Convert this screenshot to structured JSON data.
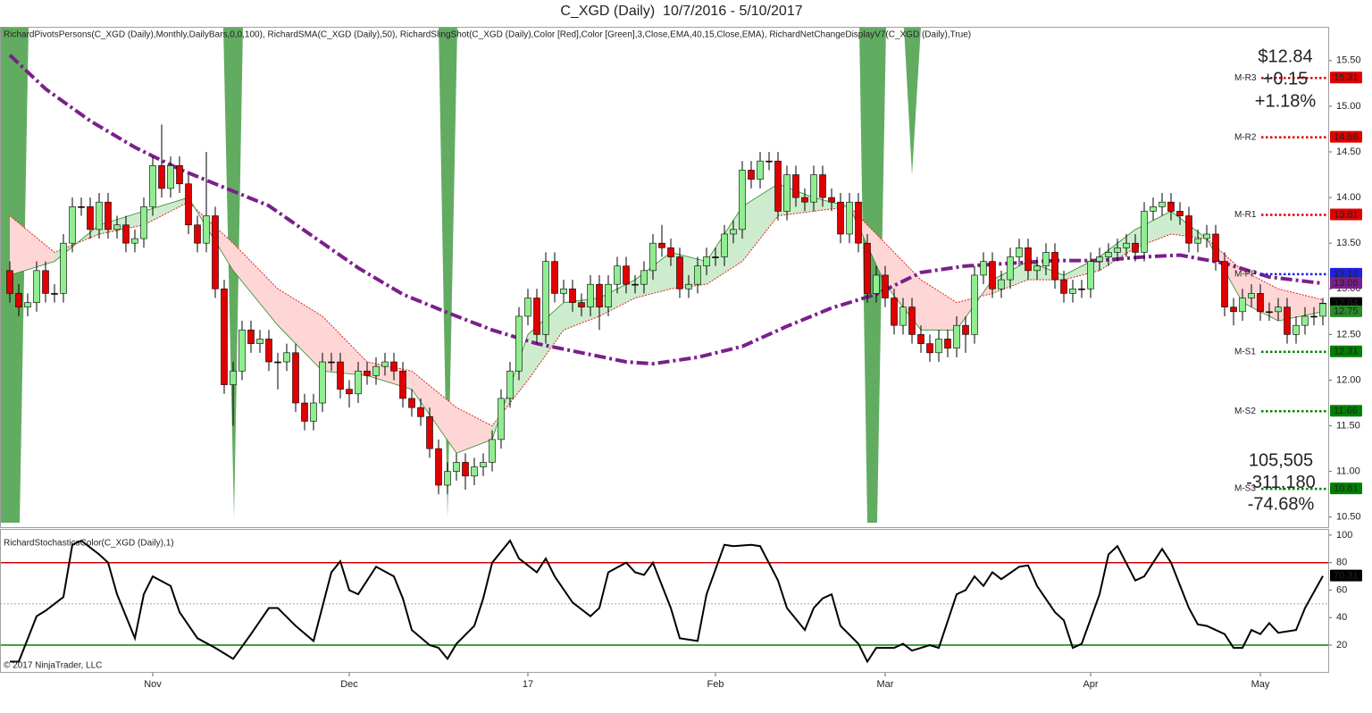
{
  "title": "C_XGD (Daily)  10/7/2016 - 5/10/2017",
  "copyright": "© 2017 NinjaTrader, LLC",
  "chart_data": [
    {
      "type": "candlestick",
      "label": "RichardPivotsPersons(C_XGD (Daily),Monthly,DailyBars,0,0,100), RichardSMA(C_XGD (Daily),50), RichardSlingShot(C_XGD (Daily),Color [Red],Color [Green],3,Close,EMA,40,15,Close,EMA), RichardNetChangeDisplayV7(C_XGD (Daily),True)",
      "xlim": [
        -1.1,
        147.6
      ],
      "ylim": [
        10.39,
        15.87
      ],
      "yticks": [
        {
          "value": 10.5,
          "label": "10.50"
        },
        {
          "value": 11,
          "label": "11.00"
        },
        {
          "value": 11.5,
          "label": "11.50"
        },
        {
          "value": 12,
          "label": "12.00"
        },
        {
          "value": 12.5,
          "label": "12.50"
        },
        {
          "value": 13,
          "label": "13.00"
        },
        {
          "value": 13.5,
          "label": "13.50"
        },
        {
          "value": 14,
          "label": "14.00"
        },
        {
          "value": 14.5,
          "label": "14.50"
        },
        {
          "value": 15,
          "label": "15.00"
        },
        {
          "value": 15.5,
          "label": "15.50"
        }
      ],
      "xticks": [
        {
          "value": 16,
          "label": "Nov"
        },
        {
          "value": 38,
          "label": "Dec"
        },
        {
          "value": 58,
          "label": "17"
        },
        {
          "value": 79,
          "label": "Feb"
        },
        {
          "value": 98,
          "label": "Mar"
        },
        {
          "value": 121,
          "label": "Apr"
        },
        {
          "value": 140,
          "label": "May"
        }
      ],
      "grid": false,
      "up_color": "#90ee90",
      "down_color": "#e00000",
      "open": [
        13.2,
        12.95,
        12.8,
        12.85,
        13.2,
        12.95,
        12.95,
        13.5,
        13.9,
        13.9,
        13.65,
        13.95,
        13.65,
        13.7,
        13.5,
        13.55,
        13.9,
        14.35,
        14.1,
        14.35,
        14.15,
        13.7,
        13.5,
        13.8,
        13.0,
        11.95,
        12.1,
        12.55,
        12.4,
        12.45,
        12.2,
        12.2,
        12.3,
        11.75,
        11.55,
        11.75,
        12.2,
        12.2,
        11.9,
        11.85,
        12.1,
        12.05,
        12.15,
        12.2,
        12.1,
        11.8,
        11.7,
        11.6,
        11.25,
        10.85,
        11.0,
        11.1,
        10.95,
        11.05,
        11.1,
        11.35,
        11.8,
        12.1,
        12.7,
        12.9,
        12.5,
        13.3,
        12.95,
        13.0,
        12.85,
        12.8,
        13.05,
        12.8,
        13.05,
        13.25,
        13.05,
        13.05,
        13.2,
        13.5,
        13.45,
        13.35,
        13.0,
        13.05,
        13.25,
        13.35,
        13.35,
        13.6,
        13.65,
        14.3,
        14.2,
        14.4,
        14.4,
        13.85,
        14.25,
        14.0,
        13.95,
        14.25,
        14.0,
        13.95,
        13.6,
        13.95,
        13.5,
        12.95,
        13.15,
        12.9,
        12.6,
        12.8,
        12.5,
        12.4,
        12.3,
        12.45,
        12.35,
        12.6,
        12.5,
        13.15,
        13.3,
        13.0,
        13.1,
        13.35,
        13.45,
        13.2,
        13.25,
        13.4,
        13.1,
        12.95,
        13.0,
        13.0,
        13.3,
        13.35,
        13.4,
        13.45,
        13.5,
        13.4,
        13.85,
        13.9,
        13.95,
        13.85,
        13.8,
        13.5,
        13.55,
        13.6,
        13.3,
        12.8,
        12.75,
        12.9,
        12.95,
        12.75,
        12.75,
        12.8,
        12.5,
        12.6,
        12.7,
        12.7
      ],
      "high": [
        13.3,
        13.05,
        12.95,
        13.3,
        13.3,
        13.05,
        13.6,
        14.0,
        14.0,
        14.0,
        14.05,
        14.05,
        13.8,
        13.8,
        13.65,
        14.0,
        14.45,
        14.8,
        14.45,
        14.45,
        14.25,
        13.8,
        14.5,
        13.9,
        13.1,
        12.2,
        12.65,
        12.65,
        12.55,
        12.55,
        12.3,
        12.4,
        12.4,
        11.85,
        11.85,
        12.3,
        12.3,
        12.3,
        12.0,
        12.2,
        12.2,
        12.25,
        12.3,
        12.3,
        12.2,
        11.9,
        11.8,
        11.7,
        11.35,
        11.1,
        11.2,
        11.2,
        11.15,
        11.2,
        11.45,
        11.9,
        12.2,
        12.8,
        13.0,
        13.0,
        13.4,
        13.4,
        13.1,
        13.1,
        12.95,
        13.15,
        13.15,
        13.15,
        13.35,
        13.35,
        13.15,
        13.3,
        13.6,
        13.7,
        13.55,
        13.45,
        13.15,
        13.35,
        13.45,
        13.45,
        13.7,
        13.75,
        14.4,
        14.4,
        14.5,
        14.5,
        14.5,
        14.35,
        14.35,
        14.1,
        14.35,
        14.35,
        14.1,
        14.05,
        14.05,
        14.05,
        13.6,
        13.25,
        13.25,
        13.0,
        12.9,
        12.9,
        12.6,
        12.5,
        12.55,
        12.55,
        12.7,
        12.7,
        13.25,
        13.4,
        13.4,
        13.2,
        13.45,
        13.55,
        13.55,
        13.35,
        13.5,
        13.5,
        13.2,
        13.1,
        13.1,
        13.4,
        13.45,
        13.5,
        13.55,
        13.6,
        13.6,
        13.95,
        14.0,
        14.05,
        14.05,
        13.95,
        13.9,
        13.65,
        13.7,
        13.7,
        13.4,
        12.9,
        13.0,
        13.05,
        13.05,
        12.85,
        12.9,
        12.9,
        12.7,
        12.8,
        12.8,
        12.9
      ],
      "low": [
        12.85,
        12.7,
        12.7,
        12.75,
        12.85,
        12.85,
        12.85,
        13.4,
        13.8,
        13.55,
        13.55,
        13.55,
        13.55,
        13.4,
        13.4,
        13.45,
        13.8,
        14.0,
        14.0,
        14.05,
        13.6,
        13.4,
        13.4,
        12.9,
        11.85,
        11.5,
        12.0,
        12.3,
        12.3,
        12.1,
        11.9,
        12.1,
        11.65,
        11.45,
        11.45,
        11.65,
        12.1,
        11.8,
        11.7,
        11.75,
        11.95,
        11.95,
        12.05,
        12.0,
        11.7,
        11.6,
        11.5,
        11.15,
        10.75,
        10.75,
        10.9,
        10.8,
        10.85,
        10.95,
        11.0,
        11.25,
        11.7,
        12.0,
        12.6,
        12.4,
        12.4,
        12.85,
        12.85,
        12.75,
        12.7,
        12.7,
        12.55,
        12.7,
        12.95,
        12.95,
        12.95,
        12.95,
        13.1,
        13.35,
        13.25,
        12.9,
        12.9,
        12.95,
        13.15,
        13.25,
        13.25,
        13.5,
        13.55,
        14.1,
        14.1,
        14.3,
        13.75,
        13.75,
        13.9,
        13.85,
        13.85,
        13.9,
        13.85,
        13.5,
        13.5,
        13.4,
        12.85,
        12.85,
        12.8,
        12.5,
        12.5,
        12.4,
        12.3,
        12.2,
        12.2,
        12.25,
        12.25,
        12.3,
        12.4,
        13.05,
        12.9,
        12.9,
        13.0,
        13.25,
        13.1,
        13.1,
        13.15,
        13.0,
        12.85,
        12.85,
        12.9,
        12.9,
        13.2,
        13.25,
        13.3,
        13.35,
        13.3,
        13.3,
        13.75,
        13.8,
        13.75,
        13.7,
        13.4,
        13.4,
        13.45,
        13.2,
        12.7,
        12.6,
        12.65,
        12.8,
        12.65,
        12.65,
        12.65,
        12.4,
        12.4,
        12.5,
        12.6,
        12.6
      ],
      "close": [
        12.95,
        12.8,
        12.85,
        13.2,
        12.95,
        12.95,
        13.5,
        13.9,
        13.9,
        13.65,
        13.95,
        13.65,
        13.7,
        13.5,
        13.55,
        13.9,
        14.35,
        14.1,
        14.35,
        14.15,
        13.7,
        13.5,
        13.8,
        13.0,
        11.95,
        12.1,
        12.55,
        12.4,
        12.45,
        12.2,
        12.2,
        12.3,
        11.75,
        11.55,
        11.75,
        12.2,
        12.2,
        11.9,
        11.85,
        12.1,
        12.05,
        12.15,
        12.2,
        12.1,
        11.8,
        11.7,
        11.6,
        11.25,
        10.85,
        11.0,
        11.1,
        10.95,
        11.05,
        11.1,
        11.35,
        11.8,
        12.1,
        12.7,
        12.9,
        12.5,
        13.3,
        12.95,
        13.0,
        12.85,
        12.8,
        13.05,
        12.8,
        13.05,
        13.25,
        13.05,
        13.05,
        13.2,
        13.5,
        13.45,
        13.35,
        13.0,
        13.05,
        13.25,
        13.35,
        13.35,
        13.6,
        13.65,
        14.3,
        14.2,
        14.4,
        14.4,
        13.85,
        14.25,
        14.0,
        13.95,
        14.25,
        14.0,
        13.95,
        13.6,
        13.95,
        13.5,
        12.95,
        13.15,
        12.9,
        12.6,
        12.8,
        12.5,
        12.4,
        12.3,
        12.45,
        12.35,
        12.6,
        12.5,
        13.15,
        13.3,
        13.0,
        13.1,
        13.35,
        13.45,
        13.2,
        13.25,
        13.4,
        13.1,
        12.95,
        13.0,
        13.0,
        13.3,
        13.35,
        13.4,
        13.45,
        13.5,
        13.4,
        13.85,
        13.9,
        13.95,
        13.85,
        13.8,
        13.5,
        13.55,
        13.6,
        13.3,
        12.8,
        12.75,
        12.9,
        12.95,
        12.75,
        12.75,
        12.8,
        12.5,
        12.6,
        12.7,
        12.7,
        12.84
      ],
      "last_color": "#000000",
      "sma": {
        "color": "#7b1f8c",
        "x": [
          0,
          4,
          9,
          14,
          19,
          24,
          29,
          34,
          39,
          44,
          49,
          54,
          59,
          64,
          69,
          72,
          77,
          82,
          87,
          92,
          97,
          102,
          107,
          112,
          117,
          122,
          127,
          131,
          136,
          141,
          147
        ],
        "values": [
          15.56,
          15.19,
          14.84,
          14.55,
          14.31,
          14.11,
          13.91,
          13.57,
          13.23,
          12.94,
          12.74,
          12.55,
          12.4,
          12.3,
          12.2,
          12.18,
          12.25,
          12.37,
          12.59,
          12.79,
          12.94,
          13.18,
          13.25,
          13.28,
          13.31,
          13.31,
          13.35,
          13.37,
          13.28,
          13.13,
          13.06
        ]
      },
      "ema": {
        "fast_color": "#2a8a2a",
        "slow_color": "#e02020",
        "up_color": "#cdeccd",
        "down_color": "#ffd6d6",
        "x": [
          0,
          5,
          10,
          15,
          20,
          25,
          30,
          35,
          40,
          45,
          50,
          54,
          58,
          62,
          66,
          70,
          74,
          78,
          82,
          86,
          90,
          94,
          98,
          102,
          106,
          110,
          114,
          118,
          122,
          126,
          130,
          134,
          138,
          142,
          147
        ],
        "fast": [
          13.15,
          13.3,
          13.7,
          13.85,
          14.0,
          13.2,
          12.6,
          12.1,
          12.05,
          11.9,
          11.2,
          11.35,
          12.5,
          12.85,
          12.9,
          13.1,
          13.4,
          13.3,
          13.9,
          14.15,
          14.0,
          13.9,
          13.05,
          12.55,
          12.55,
          13.1,
          13.3,
          13.15,
          13.35,
          13.65,
          13.85,
          13.55,
          12.85,
          12.65,
          12.75
        ],
        "slow": [
          13.8,
          13.4,
          13.6,
          13.7,
          13.95,
          13.5,
          13.0,
          12.7,
          12.2,
          12.1,
          11.7,
          11.5,
          12.0,
          12.55,
          12.7,
          12.9,
          13.0,
          13.05,
          13.3,
          13.8,
          13.85,
          13.9,
          13.5,
          13.1,
          12.85,
          12.95,
          13.1,
          13.1,
          13.2,
          13.45,
          13.6,
          13.55,
          13.2,
          13.0,
          12.88
        ]
      },
      "pivots": [
        {
          "name": "M-R3",
          "value": 15.31,
          "color": "#e00000"
        },
        {
          "name": "M-R2",
          "value": 14.66,
          "color": "#e00000"
        },
        {
          "name": "M-R1",
          "value": 13.81,
          "color": "#e00000"
        },
        {
          "name": "M-PP",
          "value": 13.16,
          "color": "#2020e0"
        },
        {
          "name": "M-S1",
          "value": 12.31,
          "color": "#008000"
        },
        {
          "name": "M-S2",
          "value": 11.66,
          "color": "#008000"
        },
        {
          "name": "M-S3",
          "value": 10.81,
          "color": "#008000"
        }
      ],
      "net_change": {
        "price": "$12.84",
        "change": "+0.15",
        "percent": "+1.18%",
        "color": "#1a9a1a"
      },
      "volume_change": {
        "volume": "105,505",
        "change": "-311,180",
        "percent": "-74.68%",
        "color": "#e00000"
      }
    },
    {
      "type": "line",
      "label": "RichardStochasticsColor(C_XGD (Daily),1)",
      "xlim": [
        -1.1,
        147.6
      ],
      "ylim": [
        0.5,
        104.5
      ],
      "yticks": [
        20,
        40,
        60,
        80,
        100
      ],
      "color": "#000000",
      "levels": [
        {
          "value": 80,
          "color": "#d00000",
          "style": "solid"
        },
        {
          "value": 50,
          "color": "#888888",
          "style": "dotted"
        },
        {
          "value": 20,
          "color": "#008000",
          "style": "solid"
        }
      ],
      "x": [
        0,
        1,
        3,
        4,
        6,
        7,
        8,
        10,
        11,
        12,
        14,
        15,
        16,
        18,
        19,
        21,
        23,
        25,
        27,
        29,
        30,
        32,
        34,
        36,
        37,
        38,
        39,
        40,
        41,
        43,
        44,
        45,
        47,
        48,
        49,
        50,
        52,
        53,
        54,
        56,
        57,
        59,
        60,
        61,
        63,
        65,
        66,
        67,
        69,
        70,
        71,
        72,
        74,
        75,
        77,
        78,
        80,
        81,
        83,
        84,
        86,
        87,
        89,
        90,
        91,
        92,
        93,
        95,
        96,
        97,
        99,
        100,
        101,
        103,
        104,
        106,
        107,
        108,
        109,
        110,
        111,
        113,
        114,
        115,
        117,
        118,
        119,
        120,
        122,
        123,
        124,
        126,
        127,
        129,
        130,
        132,
        133,
        134,
        136,
        137,
        138,
        139,
        140,
        141,
        142,
        144,
        145,
        147
      ],
      "values": [
        8,
        8,
        41,
        45,
        55,
        93,
        96,
        86,
        80,
        57,
        25,
        57,
        70,
        63,
        44,
        25,
        18,
        10,
        28,
        47,
        47,
        34,
        23,
        73,
        81,
        60,
        57,
        67,
        77,
        70,
        54,
        31,
        20,
        18,
        10,
        21,
        34,
        54,
        80,
        96,
        83,
        73,
        83,
        70,
        51,
        41,
        47,
        73,
        80,
        73,
        71,
        80,
        47,
        25,
        23,
        57,
        93,
        92,
        93,
        92,
        67,
        47,
        31,
        47,
        54,
        57,
        34,
        21,
        8,
        18,
        18,
        21,
        16,
        20,
        18,
        57,
        60,
        70,
        63,
        73,
        68,
        77,
        78,
        63,
        44,
        38,
        18,
        21,
        57,
        86,
        92,
        67,
        70,
        90,
        80,
        47,
        35,
        34,
        28,
        18,
        18,
        31,
        28,
        36,
        29,
        31,
        47,
        70.31
      ]
    }
  ]
}
